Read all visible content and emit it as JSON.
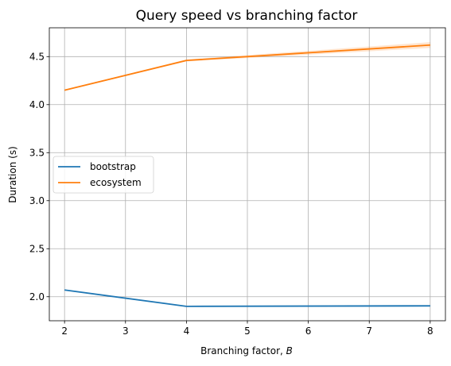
{
  "chart_data": {
    "type": "line",
    "title": "Query speed vs branching factor",
    "xlabel": "Branching factor, ",
    "xlabel_var": "B",
    "ylabel": "Duration (s)",
    "xlim": [
      1.75,
      8.25
    ],
    "ylim": [
      1.75,
      4.8
    ],
    "xticks": [
      2,
      3,
      4,
      5,
      6,
      7,
      8
    ],
    "yticks": [
      2.0,
      2.5,
      3.0,
      3.5,
      4.0,
      4.5
    ],
    "ytick_labels": [
      "2.0",
      "2.5",
      "3.0",
      "3.5",
      "4.0",
      "4.5"
    ],
    "grid": true,
    "legend_placement": "center-left",
    "series": [
      {
        "name": "bootstrap",
        "color": "#1f77b4",
        "x": [
          2,
          4,
          8
        ],
        "y": [
          2.07,
          1.9,
          1.905
        ],
        "band_low": [
          2.065,
          1.895,
          1.895
        ],
        "band_high": [
          2.075,
          1.905,
          1.915
        ]
      },
      {
        "name": "ecosystem",
        "color": "#ff7f0e",
        "x": [
          2,
          4,
          8
        ],
        "y": [
          4.15,
          4.46,
          4.62
        ],
        "band_low": [
          4.145,
          4.45,
          4.59
        ],
        "band_high": [
          4.155,
          4.47,
          4.65
        ]
      }
    ]
  }
}
